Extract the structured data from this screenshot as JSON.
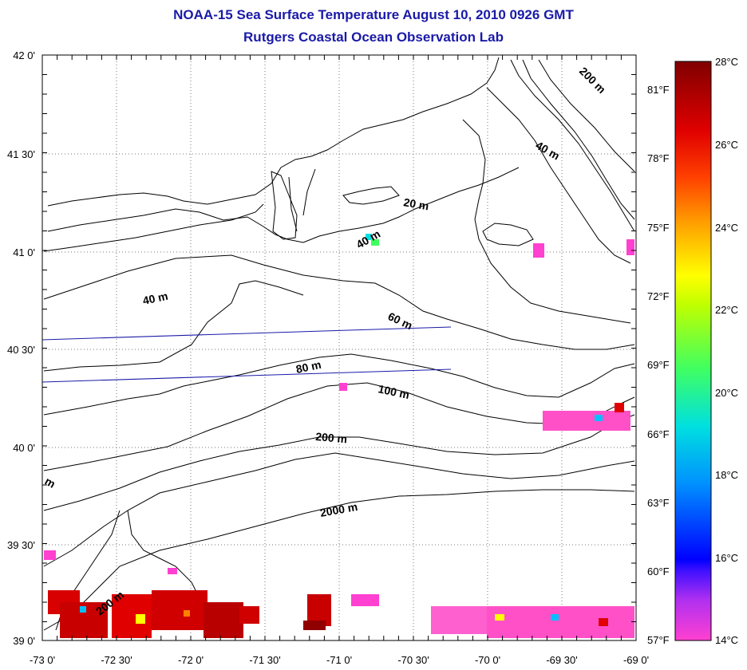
{
  "titles": {
    "line1": "NOAA-15 Sea Surface Temperature August 10, 2010 0926 GMT",
    "line2": "Rutgers Coastal Ocean Observation Lab"
  },
  "axes": {
    "lon_labels": [
      "-73 0'",
      "-72 30'",
      "-72 0'",
      "-71 30'",
      "-71 0'",
      "-70 30'",
      "-70 0'",
      "-69 30'",
      "-69 0'"
    ],
    "lat_labels": [
      "42 0'",
      "41 30'",
      "41 0'",
      "40 30'",
      "40 0'",
      "39 30'",
      "39 0'"
    ],
    "fahrenheit_labels": [
      "81°F",
      "78°F",
      "75°F",
      "72°F",
      "69°F",
      "66°F",
      "63°F",
      "60°F",
      "57°F"
    ]
  },
  "colorbar": {
    "celsius_labels": [
      "28°C",
      "26°C",
      "24°C",
      "22°C",
      "20°C",
      "18°C",
      "16°C",
      "14°C"
    ],
    "colors": [
      "#ff40d0",
      "#8020ff",
      "#0000ff",
      "#0090ff",
      "#00e0e0",
      "#40ff60",
      "#c0ff00",
      "#ffff00",
      "#ffa000",
      "#ff4000",
      "#e00000",
      "#800000"
    ]
  },
  "contour_labels": [
    "20 m",
    "40 m",
    "40 m",
    "40 m",
    "60 m",
    "80 m",
    "100 m",
    "200 m",
    "200 m",
    "200 m",
    "2000 m",
    "m"
  ],
  "colors": {
    "title": "#1a1aa8",
    "track": "#1a1aa8",
    "land_line": "#000000"
  }
}
